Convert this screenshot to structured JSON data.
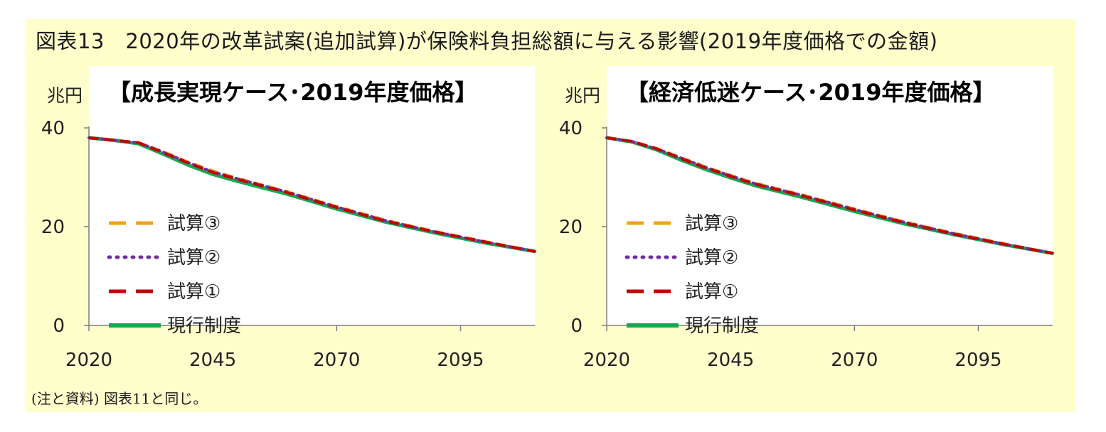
{
  "figure": {
    "title": "図表13　2020年の改革試案(追加試算)が保険料負担総額に与える影響(2019年度価格での金額)",
    "note": "(注と資料) 図表11と同じ。"
  },
  "colors": {
    "background": "#ffffcc",
    "plot_bg": "#ffffff",
    "series": {
      "試算③": "#f4a11c",
      "試算②": "#7030a0",
      "試算①": "#c00000",
      "現行制度": "#1aa552"
    }
  },
  "chart_data": [
    {
      "type": "line",
      "title": "【成長実現ケース･2019年度価格】",
      "ylabel": "兆円",
      "xlim": [
        2020,
        2110
      ],
      "ylim": [
        0,
        40
      ],
      "xticks": [
        2020,
        2045,
        2070,
        2095
      ],
      "yticks": [
        0,
        20,
        40
      ],
      "grid": false,
      "legend_position": "left",
      "series": [
        {
          "name": "試算③",
          "style": "dashed",
          "x": [
            2020,
            2025,
            2030,
            2035,
            2040,
            2045,
            2050,
            2060,
            2070,
            2080,
            2090,
            2100,
            2110
          ],
          "values": [
            38.0,
            37.5,
            37.0,
            35.2,
            33.1,
            31.3,
            29.8,
            27.1,
            24.1,
            21.3,
            19.0,
            17.0,
            15.0
          ]
        },
        {
          "name": "試算②",
          "style": "dotted",
          "x": [
            2020,
            2025,
            2030,
            2035,
            2040,
            2045,
            2050,
            2060,
            2070,
            2080,
            2090,
            2100,
            2110
          ],
          "values": [
            38.0,
            37.5,
            37.0,
            35.1,
            33.0,
            31.1,
            29.7,
            27.0,
            24.0,
            21.2,
            18.9,
            16.9,
            15.0
          ]
        },
        {
          "name": "試算①",
          "style": "dashed",
          "x": [
            2020,
            2025,
            2030,
            2035,
            2040,
            2045,
            2050,
            2060,
            2070,
            2080,
            2090,
            2100,
            2110
          ],
          "values": [
            38.0,
            37.5,
            37.0,
            35.0,
            32.9,
            31.0,
            29.6,
            26.9,
            23.9,
            21.1,
            18.9,
            16.9,
            15.0
          ]
        },
        {
          "name": "現行制度",
          "style": "solid",
          "x": [
            2020,
            2025,
            2030,
            2035,
            2040,
            2045,
            2050,
            2060,
            2070,
            2080,
            2090,
            2100,
            2110
          ],
          "values": [
            38.0,
            37.5,
            36.8,
            34.7,
            32.5,
            30.6,
            29.2,
            26.6,
            23.6,
            20.9,
            18.7,
            16.7,
            15.0
          ]
        }
      ]
    },
    {
      "type": "line",
      "title": "【経済低迷ケース･2019年度価格】",
      "ylabel": "兆円",
      "xlim": [
        2020,
        2110
      ],
      "ylim": [
        0,
        40
      ],
      "xticks": [
        2020,
        2045,
        2070,
        2095
      ],
      "yticks": [
        0,
        20,
        40
      ],
      "grid": false,
      "legend_position": "left",
      "series": [
        {
          "name": "試算③",
          "style": "dashed",
          "x": [
            2020,
            2025,
            2030,
            2035,
            2040,
            2045,
            2050,
            2060,
            2070,
            2080,
            2090,
            2100,
            2110
          ],
          "values": [
            38.0,
            37.3,
            35.9,
            34.0,
            32.1,
            30.4,
            28.8,
            26.3,
            23.6,
            21.0,
            18.7,
            16.6,
            14.6
          ]
        },
        {
          "name": "試算②",
          "style": "dotted",
          "x": [
            2020,
            2025,
            2030,
            2035,
            2040,
            2045,
            2050,
            2060,
            2070,
            2080,
            2090,
            2100,
            2110
          ],
          "values": [
            38.0,
            37.3,
            35.8,
            33.9,
            32.0,
            30.3,
            28.7,
            26.2,
            23.5,
            20.9,
            18.6,
            16.5,
            14.6
          ]
        },
        {
          "name": "試算①",
          "style": "dashed",
          "x": [
            2020,
            2025,
            2030,
            2035,
            2040,
            2045,
            2050,
            2060,
            2070,
            2080,
            2090,
            2100,
            2110
          ],
          "values": [
            38.0,
            37.3,
            35.8,
            33.8,
            31.9,
            30.2,
            28.6,
            26.1,
            23.4,
            20.8,
            18.5,
            16.5,
            14.6
          ]
        },
        {
          "name": "現行制度",
          "style": "solid",
          "x": [
            2020,
            2025,
            2030,
            2035,
            2040,
            2045,
            2050,
            2060,
            2070,
            2080,
            2090,
            2100,
            2110
          ],
          "values": [
            38.0,
            37.2,
            35.6,
            33.5,
            31.6,
            29.9,
            28.3,
            25.8,
            23.1,
            20.6,
            18.4,
            16.4,
            14.6
          ]
        }
      ]
    }
  ]
}
